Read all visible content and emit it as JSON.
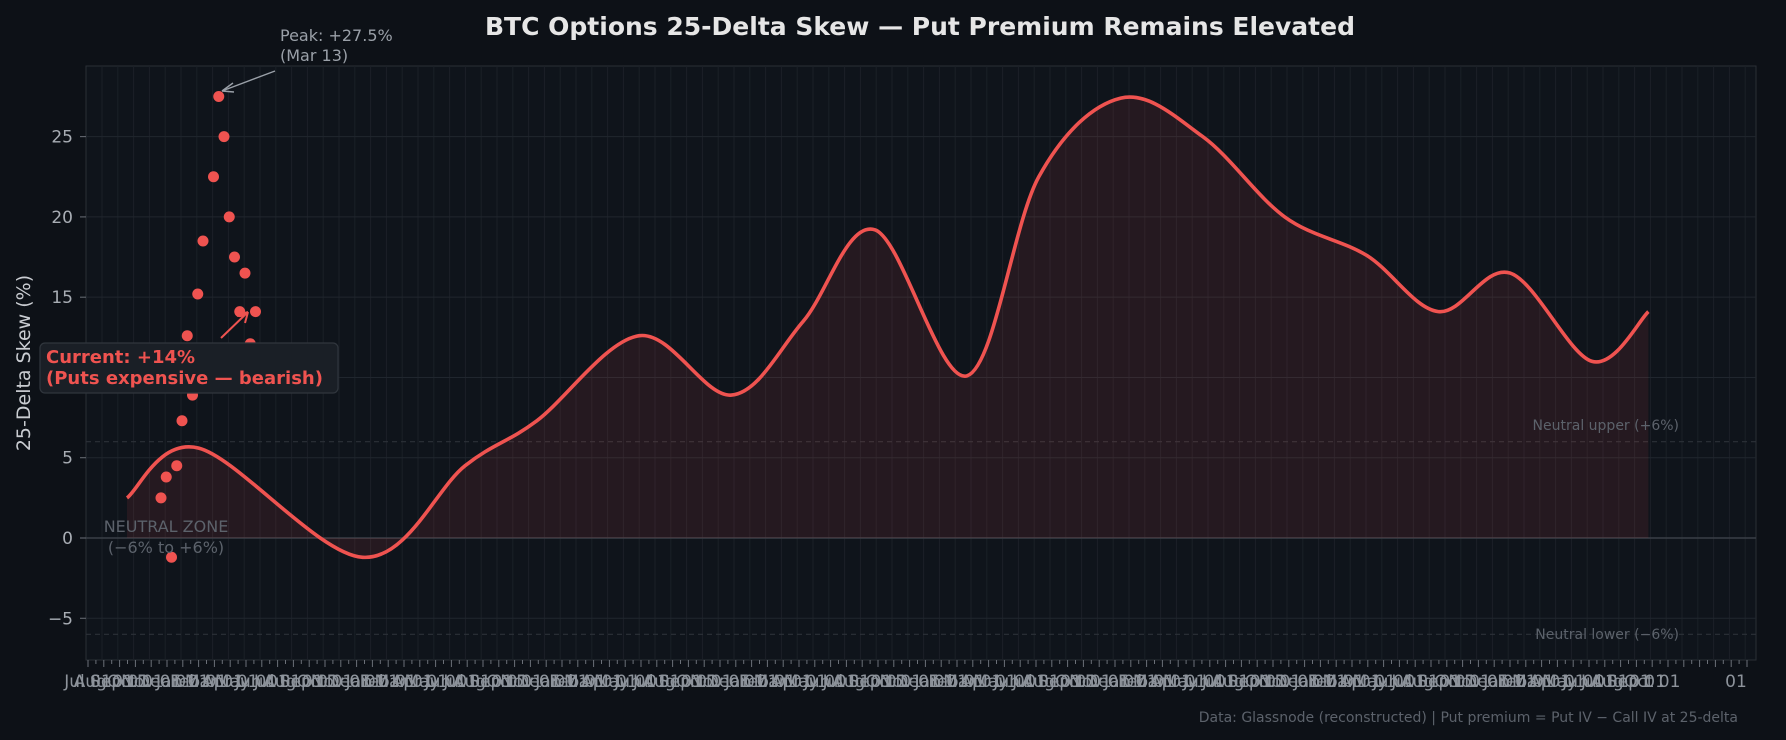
{
  "chart_data": {
    "type": "line",
    "title": "BTC Options 25-Delta Skew — Put Premium Remains Elevated",
    "ylabel": "25-Delta Skew (%)",
    "xlabel": "",
    "ylim": [
      -7.6,
      29.4
    ],
    "yticks": [
      -5,
      0,
      5,
      10,
      15,
      20,
      25
    ],
    "grid": true,
    "series": [
      {
        "kind": "scatter",
        "color": "#ef5350",
        "points": [
          {
            "x": 1,
            "y": 2.5
          },
          {
            "x": 2,
            "y": 3.8
          },
          {
            "x": 3,
            "y": -1.2
          },
          {
            "x": 4,
            "y": 4.5
          },
          {
            "x": 5,
            "y": 7.3
          },
          {
            "x": 6,
            "y": 12.6
          },
          {
            "x": 7,
            "y": 8.9
          },
          {
            "x": 8,
            "y": 15.2
          },
          {
            "x": 9,
            "y": 18.5
          },
          {
            "x": 10,
            "y": 10.1
          },
          {
            "x": 11,
            "y": 22.5
          },
          {
            "x": 12,
            "y": 27.5
          },
          {
            "x": 13,
            "y": 25.0
          },
          {
            "x": 14,
            "y": 20.0
          },
          {
            "x": 15,
            "y": 17.5
          },
          {
            "x": 16,
            "y": 14.1
          },
          {
            "x": 17,
            "y": 16.5
          },
          {
            "x": 18,
            "y": 12.1
          },
          {
            "x": 19,
            "y": 14.1
          }
        ]
      },
      {
        "kind": "smooth-line",
        "color": "#ef5350",
        "fill": true,
        "points": [
          {
            "x": 0,
            "y": 2.5
          },
          {
            "x": 14,
            "y": 5.6
          },
          {
            "x": 46,
            "y": -1.2
          },
          {
            "x": 66,
            "y": 4.5
          },
          {
            "x": 80,
            "y": 7.3
          },
          {
            "x": 100,
            "y": 12.6
          },
          {
            "x": 118,
            "y": 8.9
          },
          {
            "x": 132,
            "y": 13.5
          },
          {
            "x": 146,
            "y": 19.2
          },
          {
            "x": 164,
            "y": 10.1
          },
          {
            "x": 178,
            "y": 22.5
          },
          {
            "x": 194,
            "y": 27.4
          },
          {
            "x": 210,
            "y": 25.0
          },
          {
            "x": 226,
            "y": 20.0
          },
          {
            "x": 242,
            "y": 17.6
          },
          {
            "x": 256,
            "y": 14.1
          },
          {
            "x": 270,
            "y": 16.5
          },
          {
            "x": 286,
            "y": 11.0
          },
          {
            "x": 297,
            "y": 14.1
          }
        ]
      }
    ],
    "reference_lines": [
      {
        "y": 0,
        "style": "solid"
      },
      {
        "y": 6,
        "style": "dashed",
        "label": "Neutral upper (+6%)"
      },
      {
        "y": -6,
        "style": "dashed",
        "label": "Neutral lower (−6%)"
      }
    ],
    "annotations": {
      "peak_line1": "Peak: +27.5%",
      "peak_line2": "(Mar 13)",
      "current_line1": "Current: +14%",
      "current_line2": "(Puts expensive — bearish)",
      "zone_line1": "NEUTRAL ZONE",
      "zone_line2": "(−6% to +6%)"
    },
    "x_tick_labels": [
      "Jul 01",
      "Aug 01",
      "Sep 01",
      "Oct 01",
      "Nov 01",
      "Dec 01",
      "Jan 01",
      "Feb 01",
      "Mar 01",
      "Apr 01",
      "May 01",
      "Jun 01"
    ],
    "x_tick_last": "01",
    "footer": "Data: Glassnode (reconstructed)  |  Put premium = Put IV − Call IV at 25-delta"
  },
  "colors": {
    "background": "#0d1117",
    "plot_background": "#0f141b",
    "accent": "#ef5350"
  }
}
